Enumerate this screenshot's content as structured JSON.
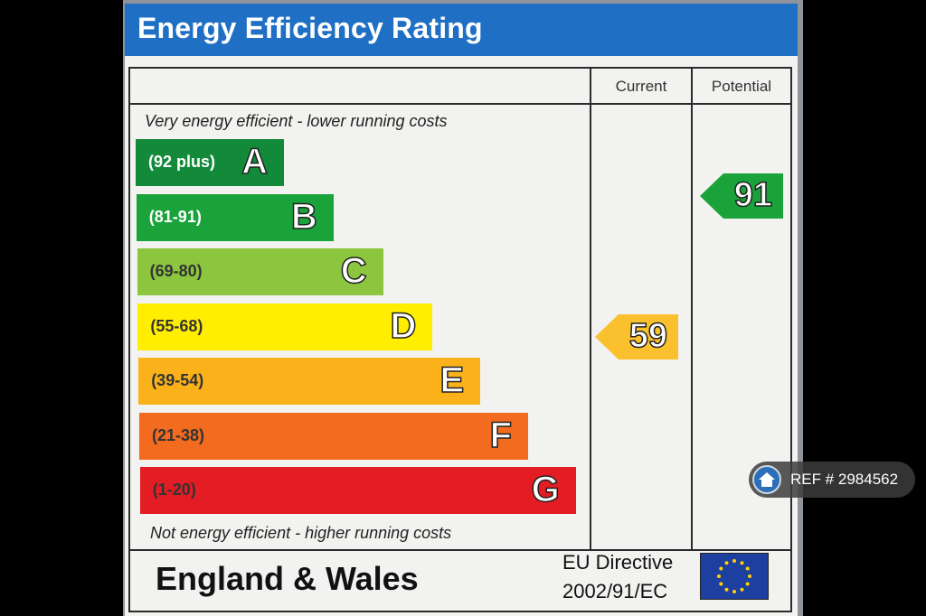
{
  "title": "Energy Efficiency Rating",
  "columns": {
    "current": "Current",
    "potential": "Potential"
  },
  "top_caption": "Very energy efficient - lower running costs",
  "bottom_caption": "Not energy efficient - higher running costs",
  "bands": [
    {
      "range": "(92 plus)",
      "letter": "A",
      "color": "#138a3a",
      "text_color": "#ffffff"
    },
    {
      "range": "(81-91)",
      "letter": "B",
      "color": "#19a33a",
      "text_color": "#ffffff"
    },
    {
      "range": "(69-80)",
      "letter": "C",
      "color": "#8cc63f",
      "text_color": "#333333"
    },
    {
      "range": "(55-68)",
      "letter": "D",
      "color": "#ffee00",
      "text_color": "#333333"
    },
    {
      "range": "(39-54)",
      "letter": "E",
      "color": "#fbb21a",
      "text_color": "#333333"
    },
    {
      "range": "(21-38)",
      "letter": "F",
      "color": "#f26b1f",
      "text_color": "#333333"
    },
    {
      "range": "(1-20)",
      "letter": "G",
      "color": "#e31d23",
      "text_color": "#333333"
    }
  ],
  "current_rating": {
    "value": "59",
    "color": "#fbc02d"
  },
  "potential_rating": {
    "value": "91",
    "color": "#19a33a"
  },
  "footer": {
    "region": "England & Wales",
    "directive_line1": "EU Directive",
    "directive_line2": "2002/91/EC"
  },
  "ref_badge": {
    "text": "REF # 2984562",
    "icon": "home-icon"
  }
}
